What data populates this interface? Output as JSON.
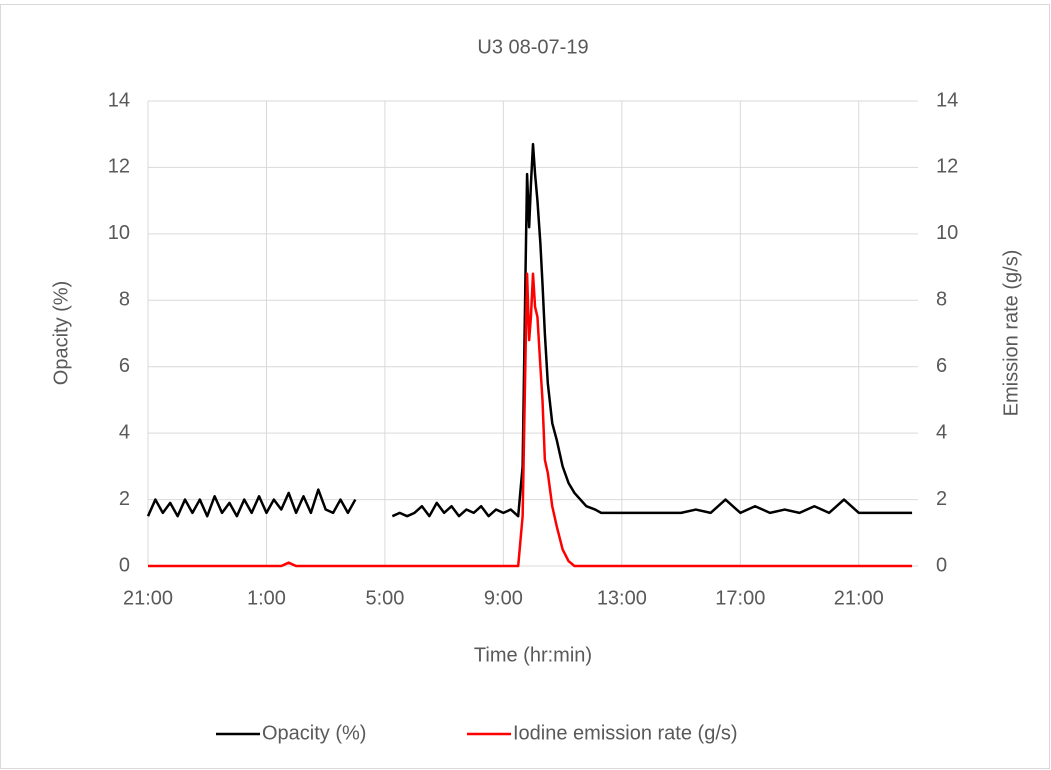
{
  "chart_data": {
    "type": "line",
    "title": "U3 08-07-19",
    "x_label": "Time (hr:min)",
    "y_label": "Opacity (%)",
    "y2_label": "Emission rate (g/s)",
    "x": [
      21,
      21.25,
      21.5,
      21.75,
      22,
      22.25,
      22.5,
      22.75,
      23,
      23.25,
      23.5,
      23.75,
      24,
      24.25,
      24.5,
      24.75,
      25,
      25.25,
      25.5,
      25.75,
      26,
      26.25,
      26.5,
      26.75,
      27,
      27.25,
      27.5,
      27.75,
      28,
      28.5,
      29.25,
      29.5,
      29.75,
      30,
      30.25,
      30.5,
      30.75,
      31,
      31.25,
      31.5,
      31.75,
      32,
      32.25,
      32.5,
      32.75,
      33,
      33.25,
      33.5,
      33.65,
      33.75,
      33.8,
      33.87,
      33.93,
      34,
      34.07,
      34.15,
      34.25,
      34.32,
      34.4,
      34.5,
      34.65,
      34.8,
      35,
      35.2,
      35.4,
      35.6,
      35.8,
      36.1,
      36.3,
      36.5,
      37,
      37.5,
      38,
      38.5,
      39,
      39.5,
      40,
      40.5,
      41,
      41.5,
      42,
      42.5,
      43,
      43.5,
      44,
      44.5,
      45,
      45.5,
      46,
      46.5,
      46.8
    ],
    "series": [
      {
        "name": "Opacity (%)",
        "color": "#000000",
        "axis": "y",
        "values": [
          1.5,
          2.0,
          1.6,
          1.9,
          1.5,
          2.0,
          1.6,
          2.0,
          1.5,
          2.1,
          1.6,
          1.9,
          1.5,
          2.0,
          1.6,
          2.1,
          1.6,
          2.0,
          1.7,
          2.2,
          1.6,
          2.1,
          1.6,
          2.3,
          1.7,
          1.6,
          2.0,
          1.6,
          2.0,
          null,
          1.5,
          1.6,
          1.5,
          1.6,
          1.8,
          1.5,
          1.9,
          1.6,
          1.8,
          1.5,
          1.7,
          1.6,
          1.8,
          1.5,
          1.7,
          1.6,
          1.7,
          1.5,
          3,
          9,
          11.8,
          10.2,
          11.5,
          12.7,
          11.8,
          11,
          9.7,
          8.5,
          7,
          5.5,
          4.3,
          3.8,
          3,
          2.5,
          2.2,
          2.0,
          1.8,
          1.7,
          1.6,
          1.6,
          1.6,
          1.6,
          1.6,
          1.6,
          1.6,
          1.7,
          1.6,
          2.0,
          1.6,
          1.8,
          1.6,
          1.7,
          1.6,
          1.8,
          1.6,
          2.0,
          1.6,
          1.6,
          1.6,
          1.6,
          1.6
        ]
      },
      {
        "name": "Iodine emission rate (g/s)",
        "color": "#ff0000",
        "axis": "y2",
        "values": [
          0,
          0,
          0,
          0,
          0,
          0,
          0,
          0,
          0,
          0,
          0,
          0,
          0,
          0,
          0,
          0,
          0,
          0,
          0,
          0.1,
          0,
          0,
          0,
          0,
          0,
          0,
          0,
          0,
          0,
          0,
          0,
          0,
          0,
          0,
          0,
          0,
          0,
          0,
          0,
          0,
          0,
          0,
          0,
          0,
          0,
          0,
          0,
          0,
          1.5,
          6.5,
          8.8,
          6.8,
          7.5,
          8.8,
          7.8,
          7.5,
          6.0,
          5.0,
          3.2,
          2.8,
          1.8,
          1.2,
          0.5,
          0.15,
          0,
          0,
          0,
          0,
          0,
          0,
          0,
          0,
          0,
          0,
          0,
          0,
          0,
          0,
          0,
          0,
          0,
          0,
          0,
          0,
          0,
          0,
          0,
          0,
          0,
          0,
          0
        ]
      }
    ],
    "xlim": [
      21,
      47
    ],
    "xticks": [
      {
        "value": 21,
        "label": "21:00"
      },
      {
        "value": 25,
        "label": "1:00"
      },
      {
        "value": 29,
        "label": "5:00"
      },
      {
        "value": 33,
        "label": "9:00"
      },
      {
        "value": 37,
        "label": "13:00"
      },
      {
        "value": 41,
        "label": "17:00"
      },
      {
        "value": 45,
        "label": "21:00"
      }
    ],
    "ylim": [
      0,
      14
    ],
    "yticks": [
      0,
      2,
      4,
      6,
      8,
      10,
      12,
      14
    ],
    "y2lim": [
      0,
      14
    ],
    "y2ticks": [
      0,
      2,
      4,
      6,
      8,
      10,
      12,
      14
    ],
    "grid": true,
    "legend": "bottom"
  }
}
